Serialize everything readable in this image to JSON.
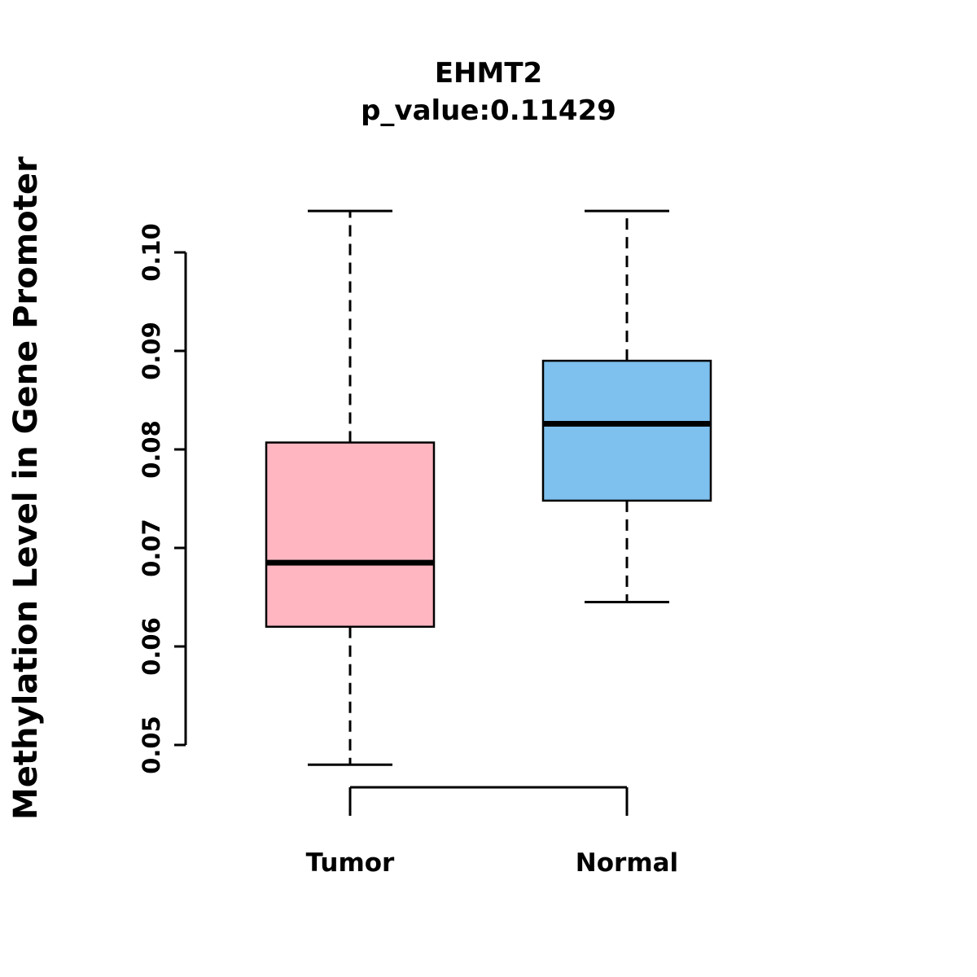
{
  "chart_data": {
    "type": "boxplot",
    "title": "EHMT2",
    "subtitle": "p_value:0.11429",
    "ylabel": "Methylation Level in Gene Promoter",
    "xlabel": "",
    "ylim": [
      0.05,
      0.1
    ],
    "ytick_labels": [
      "0.05",
      "0.06",
      "0.07",
      "0.08",
      "0.09",
      "0.10"
    ],
    "ytick_values": [
      0.05,
      0.06,
      0.07,
      0.08,
      0.09,
      0.1
    ],
    "categories": [
      "Tumor",
      "Normal"
    ],
    "grid": "off",
    "legend": "none",
    "series": [
      {
        "name": "Tumor",
        "color": "#FFB6C1",
        "whisker_low": 0.048,
        "q1": 0.062,
        "median": 0.0685,
        "q3": 0.0807,
        "whisker_high": 0.1042
      },
      {
        "name": "Normal",
        "color": "#7EC0EE",
        "whisker_low": 0.0645,
        "q1": 0.0748,
        "median": 0.0826,
        "q3": 0.089,
        "whisker_high": 0.1042
      }
    ]
  }
}
